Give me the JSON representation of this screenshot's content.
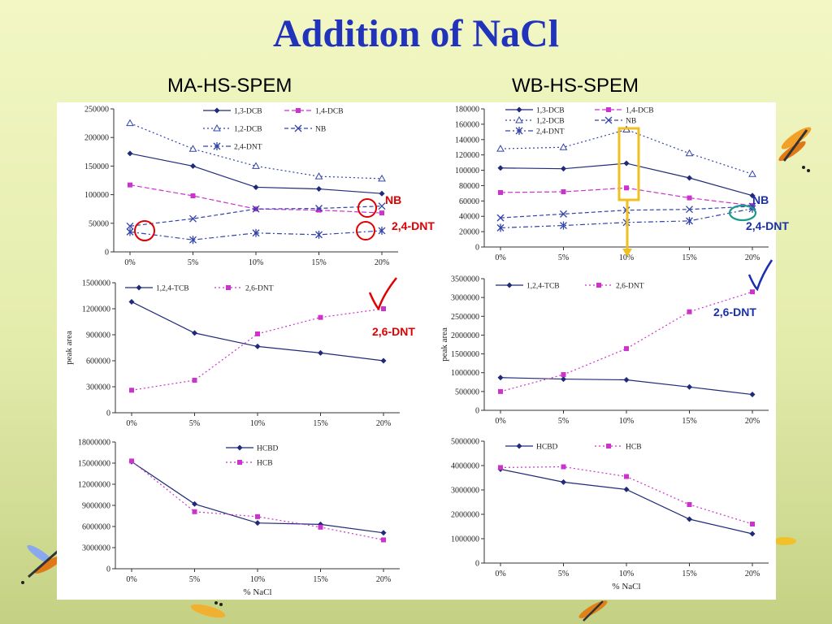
{
  "slide": {
    "title": "Addition of NaCl",
    "left_heading": "MA-HS-SPEM",
    "right_heading": "WB-HS-SPEM"
  },
  "annotations": {
    "nb_left": "NB",
    "dnt24_left": "2,4-DNT",
    "dnt26_left": "2,6-DNT",
    "nb_right": "NB",
    "dnt24_right": "2,4-DNT",
    "dnt26_right": "2,6-DNT"
  },
  "colors": {
    "title": "#2233bb",
    "navy": "#1f2a78",
    "magenta": "#cc33cc",
    "highlight_red": "#e00000",
    "highlight_teal": "#1a9a8a",
    "highlight_yellow": "#f0c020"
  },
  "chart_data": [
    {
      "id": "ma1",
      "type": "line",
      "categories": [
        "0%",
        "5%",
        "10%",
        "15%",
        "20%"
      ],
      "ylim": [
        0,
        250000
      ],
      "yticks": [
        "0",
        "50000",
        "100000",
        "150000",
        "200000",
        "250000"
      ],
      "series": [
        {
          "name": "1,3-DCB",
          "values": [
            172000,
            150000,
            113000,
            110000,
            102000
          ],
          "color": "#1f2a78",
          "marker": "diamond",
          "dash": ""
        },
        {
          "name": "1,4-DCB",
          "values": [
            117000,
            98000,
            75000,
            73000,
            68000
          ],
          "color": "#cc33cc",
          "marker": "square",
          "dash": "6,3"
        },
        {
          "name": "1,2-DCB",
          "values": [
            225000,
            180000,
            150000,
            132000,
            128000
          ],
          "color": "#3344aa",
          "marker": "triangle",
          "dash": "2,3"
        },
        {
          "name": "NB",
          "values": [
            45000,
            58000,
            75000,
            76000,
            80000
          ],
          "color": "#3344aa",
          "marker": "x",
          "dash": "5,3"
        },
        {
          "name": "2,4-DNT",
          "values": [
            35000,
            21000,
            33000,
            30000,
            37000
          ],
          "color": "#3344aa",
          "marker": "star",
          "dash": "6,3,2,3"
        }
      ]
    },
    {
      "id": "wb1",
      "type": "line",
      "categories": [
        "0%",
        "5%",
        "10%",
        "15%",
        "20%"
      ],
      "ylim": [
        0,
        180000
      ],
      "yticks": [
        "0",
        "20000",
        "40000",
        "60000",
        "80000",
        "100000",
        "120000",
        "140000",
        "160000",
        "180000"
      ],
      "series": [
        {
          "name": "1,3-DCB",
          "values": [
            103000,
            102000,
            109000,
            90000,
            67000
          ],
          "color": "#1f2a78",
          "marker": "diamond",
          "dash": ""
        },
        {
          "name": "1,4-DCB",
          "values": [
            71000,
            72000,
            77000,
            64000,
            54000
          ],
          "color": "#cc33cc",
          "marker": "square",
          "dash": "6,3"
        },
        {
          "name": "1,2-DCB",
          "values": [
            128000,
            130000,
            153000,
            122000,
            95000
          ],
          "color": "#3344aa",
          "marker": "triangle",
          "dash": "2,3"
        },
        {
          "name": "NB",
          "values": [
            38000,
            43000,
            48000,
            49000,
            53000
          ],
          "color": "#3344aa",
          "marker": "x",
          "dash": "5,3"
        },
        {
          "name": "2,4-DNT",
          "values": [
            25000,
            28000,
            32000,
            34000,
            50000
          ],
          "color": "#3344aa",
          "marker": "star",
          "dash": "6,3,2,3"
        }
      ]
    },
    {
      "id": "ma2",
      "type": "line",
      "categories": [
        "0%",
        "5%",
        "10%",
        "15%",
        "20%"
      ],
      "ylabel": "peak area",
      "ylim": [
        0,
        1500000
      ],
      "yticks": [
        "0",
        "300000",
        "600000",
        "900000",
        "1200000",
        "1500000"
      ],
      "series": [
        {
          "name": "1,2,4-TCB",
          "values": [
            1280000,
            920000,
            765000,
            690000,
            600000
          ],
          "color": "#1f2a78",
          "marker": "diamond",
          "dash": ""
        },
        {
          "name": "2,6-DNT",
          "values": [
            260000,
            375000,
            910000,
            1100000,
            1200000
          ],
          "color": "#cc33cc",
          "marker": "square",
          "dash": "2,3"
        }
      ]
    },
    {
      "id": "wb2",
      "type": "line",
      "categories": [
        "0%",
        "5%",
        "10%",
        "15%",
        "20%"
      ],
      "ylabel": "peak area",
      "ylim": [
        0,
        3500000
      ],
      "yticks": [
        "0",
        "500000",
        "1000000",
        "1500000",
        "2000000",
        "2500000",
        "3000000",
        "3500000"
      ],
      "series": [
        {
          "name": "1,2,4-TCB",
          "values": [
            870000,
            830000,
            810000,
            620000,
            420000
          ],
          "color": "#1f2a78",
          "marker": "diamond",
          "dash": ""
        },
        {
          "name": "2,6-DNT",
          "values": [
            500000,
            950000,
            1640000,
            2620000,
            3150000
          ],
          "color": "#cc33cc",
          "marker": "square",
          "dash": "2,3"
        }
      ]
    },
    {
      "id": "ma3",
      "type": "line",
      "categories": [
        "0%",
        "5%",
        "10%",
        "15%",
        "20%"
      ],
      "xlabel": "% NaCl",
      "ylim": [
        0,
        18000000
      ],
      "yticks": [
        "0",
        "3000000",
        "6000000",
        "9000000",
        "12000000",
        "15000000",
        "18000000"
      ],
      "series": [
        {
          "name": "HCBD",
          "values": [
            15200000,
            9200000,
            6500000,
            6300000,
            5100000
          ],
          "color": "#1f2a78",
          "marker": "diamond",
          "dash": ""
        },
        {
          "name": "HCB",
          "values": [
            15300000,
            8100000,
            7400000,
            5900000,
            4100000
          ],
          "color": "#cc33cc",
          "marker": "square",
          "dash": "2,3"
        }
      ]
    },
    {
      "id": "wb3",
      "type": "line",
      "categories": [
        "0%",
        "5%",
        "10%",
        "15%",
        "20%"
      ],
      "xlabel": "% NaCl",
      "ylim": [
        0,
        5000000
      ],
      "yticks": [
        "0",
        "1000000",
        "2000000",
        "3000000",
        "4000000",
        "5000000"
      ],
      "series": [
        {
          "name": "HCBD",
          "values": [
            3850000,
            3320000,
            3020000,
            1800000,
            1200000
          ],
          "color": "#1f2a78",
          "marker": "diamond",
          "dash": ""
        },
        {
          "name": "HCB",
          "values": [
            3920000,
            3950000,
            3550000,
            2400000,
            1600000
          ],
          "color": "#cc33cc",
          "marker": "square",
          "dash": "2,3"
        }
      ]
    }
  ]
}
